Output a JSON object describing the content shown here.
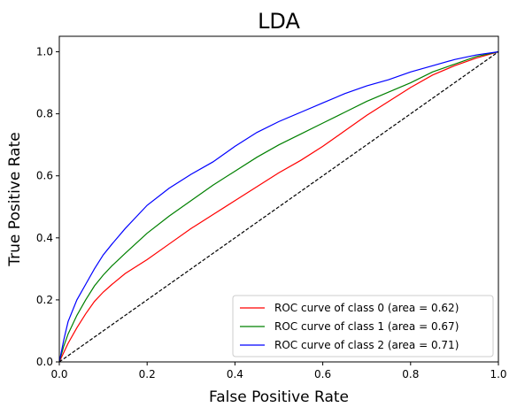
{
  "chart_data": {
    "type": "line",
    "title": "LDA",
    "xlabel": "False Positive Rate",
    "ylabel": "True Positive Rate",
    "xlim": [
      0.0,
      1.0
    ],
    "ylim": [
      0.0,
      1.05
    ],
    "xticks": [
      0.0,
      0.2,
      0.4,
      0.6,
      0.8,
      1.0
    ],
    "yticks": [
      0.0,
      0.2,
      0.4,
      0.6,
      0.8,
      1.0
    ],
    "xtick_labels": [
      "0.0",
      "0.2",
      "0.4",
      "0.6",
      "0.8",
      "1.0"
    ],
    "ytick_labels": [
      "0.0",
      "0.2",
      "0.4",
      "0.6",
      "0.8",
      "1.0"
    ],
    "legend_position": "lower-right",
    "grid": false,
    "series": [
      {
        "name": "ROC curve of class 0 (area = 0.62)",
        "color": "#ff0000",
        "x": [
          0,
          0.01,
          0.02,
          0.04,
          0.06,
          0.08,
          0.1,
          0.12,
          0.15,
          0.2,
          0.25,
          0.3,
          0.35,
          0.4,
          0.45,
          0.5,
          0.55,
          0.6,
          0.65,
          0.7,
          0.75,
          0.8,
          0.85,
          0.9,
          0.95,
          1.0
        ],
        "y": [
          0,
          0.03,
          0.06,
          0.11,
          0.155,
          0.195,
          0.225,
          0.25,
          0.285,
          0.33,
          0.38,
          0.43,
          0.475,
          0.52,
          0.565,
          0.61,
          0.65,
          0.695,
          0.745,
          0.795,
          0.84,
          0.885,
          0.925,
          0.955,
          0.98,
          1.0
        ]
      },
      {
        "name": "ROC curve of class 1 (area = 0.67)",
        "color": "#008000",
        "x": [
          0,
          0.01,
          0.02,
          0.04,
          0.06,
          0.08,
          0.1,
          0.12,
          0.15,
          0.2,
          0.25,
          0.3,
          0.35,
          0.4,
          0.45,
          0.5,
          0.55,
          0.6,
          0.65,
          0.7,
          0.75,
          0.8,
          0.85,
          0.9,
          0.95,
          1.0
        ],
        "y": [
          0,
          0.05,
          0.09,
          0.15,
          0.2,
          0.245,
          0.28,
          0.31,
          0.35,
          0.415,
          0.47,
          0.52,
          0.57,
          0.615,
          0.66,
          0.7,
          0.735,
          0.77,
          0.805,
          0.84,
          0.87,
          0.9,
          0.935,
          0.96,
          0.985,
          1.0
        ]
      },
      {
        "name": "ROC curve of class 2 (area = 0.71)",
        "color": "#0000ff",
        "x": [
          0,
          0.01,
          0.02,
          0.04,
          0.06,
          0.08,
          0.1,
          0.12,
          0.15,
          0.2,
          0.25,
          0.3,
          0.35,
          0.4,
          0.45,
          0.5,
          0.55,
          0.6,
          0.65,
          0.7,
          0.75,
          0.8,
          0.85,
          0.9,
          0.95,
          1.0
        ],
        "y": [
          0,
          0.07,
          0.13,
          0.2,
          0.25,
          0.3,
          0.345,
          0.38,
          0.43,
          0.505,
          0.56,
          0.605,
          0.645,
          0.695,
          0.74,
          0.775,
          0.805,
          0.835,
          0.865,
          0.89,
          0.91,
          0.935,
          0.955,
          0.975,
          0.99,
          1.0
        ]
      },
      {
        "name": "",
        "color": "#000000",
        "dashed": true,
        "x": [
          0,
          1
        ],
        "y": [
          0,
          1
        ]
      }
    ]
  }
}
